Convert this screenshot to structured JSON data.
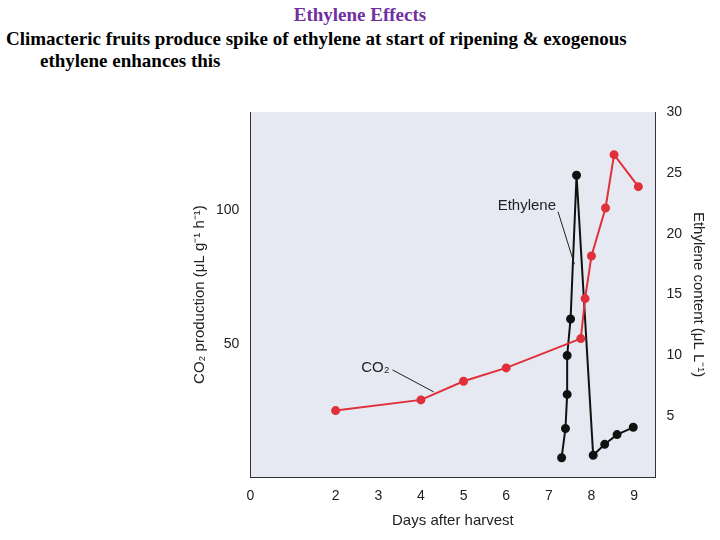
{
  "chart_data": {
    "type": "line",
    "title": "Ethylene Effects",
    "subtitle": "Climacteric fruits produce spike of ethylene at start of ripening & exogenous ethylene enhances this",
    "x_label": "Days after harvest",
    "y_label": "CO₂ production (μL g⁻¹ h⁻¹)",
    "y2_label": "Ethylene content (μL L⁻¹)",
    "xlim": [
      0,
      9.5
    ],
    "xticks": [
      0,
      2,
      3,
      4,
      5,
      6,
      7,
      8,
      9
    ],
    "ylim": [
      0,
      137
    ],
    "yticks": [
      50,
      100
    ],
    "y2lim": [
      0,
      30
    ],
    "y2ticks": [
      5,
      10,
      15,
      20,
      25,
      30
    ],
    "grid": false,
    "marker": "circle",
    "annotations": [
      "CO₂",
      "Ethylene"
    ],
    "series": [
      {
        "name": "CO₂",
        "color": "#e0303a",
        "axis": "y",
        "x": [
          2,
          4,
          5,
          6,
          7.75,
          7.85,
          8.0,
          8.33,
          8.53,
          9.1
        ],
        "values": [
          25,
          29,
          36,
          41,
          52,
          67,
          83,
          101,
          121,
          109
        ]
      },
      {
        "name": "Ethylene",
        "color": "#111111",
        "axis": "y2",
        "x": [
          7.3,
          7.39,
          7.43,
          7.43,
          7.51,
          7.65,
          8.04,
          8.31,
          8.6,
          8.98
        ],
        "values": [
          1.6,
          4,
          6.8,
          10,
          13,
          24.8,
          1.8,
          2.7,
          3.5,
          4.1
        ]
      }
    ]
  }
}
